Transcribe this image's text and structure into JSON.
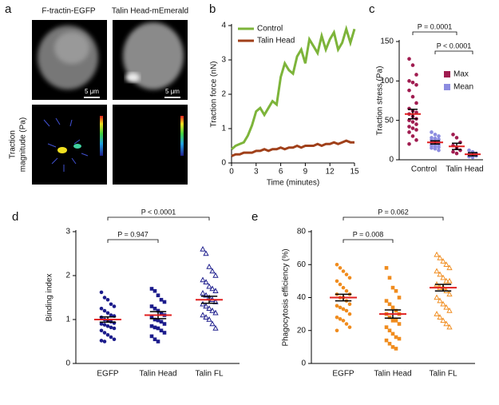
{
  "panel_labels": [
    "a",
    "b",
    "c",
    "d",
    "e"
  ],
  "image_panel": {
    "titles": [
      "F-tractin-EGFP",
      "Talin Head-mEmerald"
    ],
    "scale_bars": [
      "5 μm",
      "5 μm"
    ],
    "ylabel": [
      "Traction",
      "magnitude (Pa)"
    ]
  },
  "chart_data": [
    {
      "type": "line",
      "xlabel": "Time (minutes)",
      "ylabel": "Traction force (nN)",
      "x": [
        0,
        0.5,
        1,
        1.5,
        2,
        2.5,
        3,
        3.5,
        4,
        4.5,
        5,
        5.5,
        6,
        6.5,
        7,
        7.5,
        8,
        8.5,
        9,
        9.5,
        10,
        10.5,
        11,
        11.5,
        12,
        12.5,
        13,
        13.5,
        14,
        14.5,
        15
      ],
      "series": [
        {
          "name": "Control",
          "color": "#7db43a",
          "values": [
            0.4,
            0.5,
            0.55,
            0.6,
            0.8,
            1.1,
            1.5,
            1.6,
            1.4,
            1.6,
            1.8,
            1.7,
            2.5,
            2.9,
            2.7,
            2.6,
            3.1,
            3.3,
            2.9,
            3.6,
            3.4,
            3.2,
            3.7,
            3.3,
            3.6,
            3.8,
            3.3,
            3.5,
            3.9,
            3.5,
            3.9
          ]
        },
        {
          "name": "Talin Head",
          "color": "#a0401a",
          "values": [
            0.2,
            0.25,
            0.25,
            0.3,
            0.3,
            0.3,
            0.35,
            0.35,
            0.4,
            0.35,
            0.4,
            0.4,
            0.45,
            0.4,
            0.45,
            0.45,
            0.5,
            0.45,
            0.5,
            0.5,
            0.5,
            0.55,
            0.5,
            0.55,
            0.55,
            0.6,
            0.55,
            0.6,
            0.65,
            0.6,
            0.6
          ]
        }
      ],
      "xlim": [
        0,
        15
      ],
      "xticks": [
        0,
        3,
        6,
        9,
        12,
        15
      ],
      "ylim": [
        0,
        4
      ],
      "yticks": [
        0,
        1,
        2,
        3,
        4
      ],
      "legend": "upper-left"
    },
    {
      "type": "dotplot",
      "ylabel": "Traction stress (Pa)",
      "categories": [
        "Control",
        "Talin Head"
      ],
      "series": [
        {
          "name": "Max",
          "color": "#a01c50",
          "values": [
            [
              128,
              120,
              108,
              100,
              98,
              95,
              88,
              80,
              72,
              65,
              62,
              60,
              58,
              55,
              52,
              50,
              48,
              45,
              42,
              40,
              38,
              35,
              30,
              25,
              20
            ],
            [
              32,
              28,
              22,
              18,
              15,
              12,
              10,
              8
            ]
          ],
          "means": [
            58,
            17
          ],
          "sems": [
            6,
            4
          ]
        },
        {
          "name": "Mean",
          "color": "#8c8ce0",
          "values": [
            [
              35,
              32,
              30,
              28,
              27,
              26,
              25,
              24,
              23,
              22,
              22,
              21,
              20,
              20,
              19,
              18,
              17,
              16,
              15,
              14,
              12
            ],
            [
              12,
              10,
              8,
              7,
              6,
              5,
              4,
              3
            ]
          ],
          "means": [
            22,
            7
          ],
          "sems": [
            2,
            2
          ]
        }
      ],
      "ylim": [
        0,
        150
      ],
      "yticks": [
        0,
        50,
        100,
        150
      ],
      "annotations": [
        "P = 0.0001",
        "P < 0.0001"
      ],
      "legend": "right"
    },
    {
      "type": "dotplot",
      "ylabel": "Binding index",
      "categories": [
        "EGFP",
        "Talin Head",
        "Talin FL"
      ],
      "color": "#1c1c8c",
      "markers": [
        "circle",
        "square",
        "triangle"
      ],
      "values": [
        [
          1.62,
          1.5,
          1.45,
          1.35,
          1.3,
          1.25,
          1.2,
          1.15,
          1.1,
          1.08,
          1.05,
          1.0,
          0.98,
          0.95,
          0.92,
          0.9,
          0.88,
          0.85,
          0.82,
          0.8,
          0.75,
          0.7,
          0.65,
          0.6,
          0.55,
          0.52,
          0.5
        ],
        [
          1.7,
          1.65,
          1.55,
          1.45,
          1.4,
          1.3,
          1.25,
          1.2,
          1.15,
          1.1,
          1.05,
          1.0,
          0.98,
          0.95,
          0.9,
          0.85,
          0.82,
          0.8,
          0.75,
          0.7,
          0.62,
          0.55,
          0.5
        ],
        [
          2.6,
          2.5,
          2.2,
          2.1,
          2.0,
          1.9,
          1.85,
          1.75,
          1.7,
          1.65,
          1.6,
          1.55,
          1.5,
          1.45,
          1.4,
          1.35,
          1.3,
          1.25,
          1.2,
          1.15,
          1.1,
          1.05,
          1.0,
          0.9,
          0.8
        ]
      ],
      "means": [
        1.0,
        1.1,
        1.45
      ],
      "sems": [
        0.06,
        0.08,
        0.08
      ],
      "ylim": [
        0,
        3
      ],
      "yticks": [
        0,
        1,
        2,
        3
      ],
      "annotations": [
        "P < 0.0001",
        "P = 0.947"
      ]
    },
    {
      "type": "dotplot",
      "ylabel": "Phagocytosis efficiency (%)",
      "categories": [
        "EGFP",
        "Talin Head",
        "Talin FL"
      ],
      "color": "#f08c1e",
      "markers": [
        "circle",
        "square",
        "triangle"
      ],
      "values": [
        [
          60,
          58,
          56,
          54,
          52,
          50,
          48,
          46,
          44,
          42,
          42,
          40,
          40,
          38,
          36,
          35,
          34,
          33,
          32,
          30,
          28,
          27,
          26,
          24,
          22,
          20
        ],
        [
          58,
          52,
          46,
          44,
          40,
          38,
          36,
          34,
          32,
          30,
          30,
          28,
          26,
          26,
          24,
          22,
          20,
          18,
          16,
          15,
          14,
          12,
          10,
          9
        ],
        [
          66,
          64,
          62,
          60,
          58,
          56,
          54,
          52,
          50,
          50,
          48,
          46,
          46,
          44,
          42,
          40,
          38,
          36,
          34,
          32,
          30,
          28,
          26,
          24,
          22
        ]
      ],
      "means": [
        40,
        30,
        46
      ],
      "sems": [
        2,
        2.5,
        2
      ],
      "ylim": [
        0,
        80
      ],
      "yticks": [
        0,
        20,
        40,
        60,
        80
      ],
      "annotations": [
        "P = 0.062",
        "P = 0.008"
      ]
    }
  ]
}
